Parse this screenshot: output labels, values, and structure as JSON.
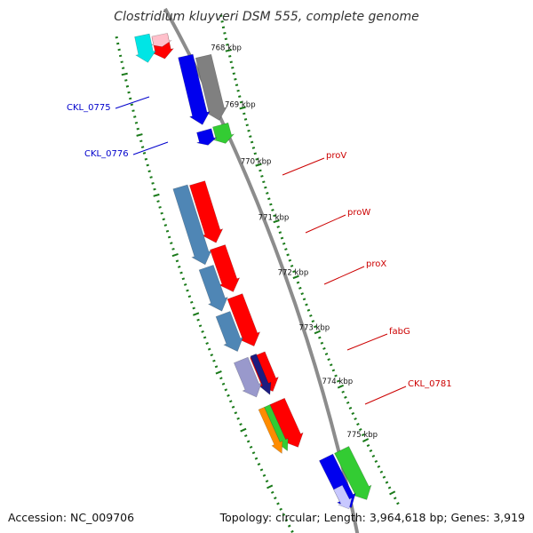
{
  "title": "Clostridium kluyveri DSM 555, complete genome",
  "accession": "Accession: NC_009706",
  "summary": "Topology: circular; Length: 3,964,618 bp; Genes: 3,919",
  "colors": {
    "backbone": "#8c8c8c",
    "tick": "#1a7a1a",
    "label_left": "#0000cc",
    "label_right": "#cc0000",
    "red": "#ff0000",
    "steelblue": "#4f86b5",
    "blue": "#0000ee",
    "gray": "#808080",
    "green": "#33cc33",
    "navy": "#1c1c80",
    "lavender": "#9999cc",
    "orange": "#ff8c00",
    "lightblue": "#c8c8ff",
    "cyan": "#00e5e5",
    "pink": "#ffc0cb"
  },
  "kbp_labels": [
    "768 kbp",
    "769 kbp",
    "770 kbp",
    "771 kbp",
    "772 kbp",
    "773 kbp",
    "774 kbp",
    "775 kbp"
  ],
  "gene_labels": [
    {
      "text": "CKL_0775",
      "side": "left"
    },
    {
      "text": "CKL_0776",
      "side": "left"
    },
    {
      "text": "proV",
      "side": "right"
    },
    {
      "text": "proW",
      "side": "right"
    },
    {
      "text": "proX",
      "side": "right"
    },
    {
      "text": "fabG",
      "side": "right"
    },
    {
      "text": "CKL_0781",
      "side": "right"
    }
  ],
  "genes": [
    {
      "ring": "r3",
      "from": 767.52,
      "to": 767.9,
      "color": "red",
      "strand": "+"
    },
    {
      "ring": "r3",
      "from": 767.5,
      "to": 767.7,
      "color": "pink",
      "strand": "+"
    },
    {
      "ring": "r4",
      "from": 767.45,
      "to": 767.9,
      "color": "cyan",
      "strand": "-"
    },
    {
      "ring": "r1",
      "from": 768.0,
      "to": 769.1,
      "color": "gray",
      "strand": "+"
    },
    {
      "ring": "r2",
      "from": 767.93,
      "to": 769.1,
      "color": "blue",
      "strand": "+"
    },
    {
      "ring": "r1",
      "from": 769.18,
      "to": 769.5,
      "color": "green",
      "strand": "+"
    },
    {
      "ring": "r2",
      "from": 769.2,
      "to": 769.45,
      "color": "blue",
      "strand": "+"
    },
    {
      "ring": "r3",
      "from": 770.0,
      "to": 771.02,
      "color": "red",
      "strand": "+"
    },
    {
      "ring": "r4",
      "from": 769.98,
      "to": 771.3,
      "color": "steelblue",
      "strand": "+"
    },
    {
      "ring": "r3",
      "from": 771.1,
      "to": 771.87,
      "color": "red",
      "strand": "+"
    },
    {
      "ring": "r4",
      "from": 771.35,
      "to": 772.1,
      "color": "steelblue",
      "strand": "+"
    },
    {
      "ring": "r3",
      "from": 771.95,
      "to": 772.82,
      "color": "red",
      "strand": "+"
    },
    {
      "ring": "r4",
      "from": 772.15,
      "to": 772.8,
      "color": "steelblue",
      "strand": "+"
    },
    {
      "ring": "r3",
      "from": 772.97,
      "to": 773.62,
      "color": "red",
      "strand": "+"
    },
    {
      "ring": "r3n",
      "from": 772.95,
      "to": 773.65,
      "color": "navy",
      "strand": "+"
    },
    {
      "ring": "r4",
      "from": 772.95,
      "to": 773.6,
      "color": "lavender",
      "strand": "+"
    },
    {
      "ring": "r3",
      "from": 773.8,
      "to": 774.62,
      "color": "red",
      "strand": "+"
    },
    {
      "ring": "r4g",
      "from": 773.8,
      "to": 774.6,
      "color": "green",
      "strand": "+"
    },
    {
      "ring": "r4o",
      "from": 773.8,
      "to": 774.6,
      "color": "orange",
      "strand": "+"
    },
    {
      "ring": "r1",
      "from": 774.97,
      "to": 775.9,
      "color": "green",
      "strand": "+"
    },
    {
      "ring": "r2",
      "from": 774.97,
      "to": 775.9,
      "color": "blue",
      "strand": "+"
    },
    {
      "ring": "r2l",
      "from": 775.5,
      "to": 775.9,
      "color": "lightblue",
      "strand": "+"
    }
  ]
}
